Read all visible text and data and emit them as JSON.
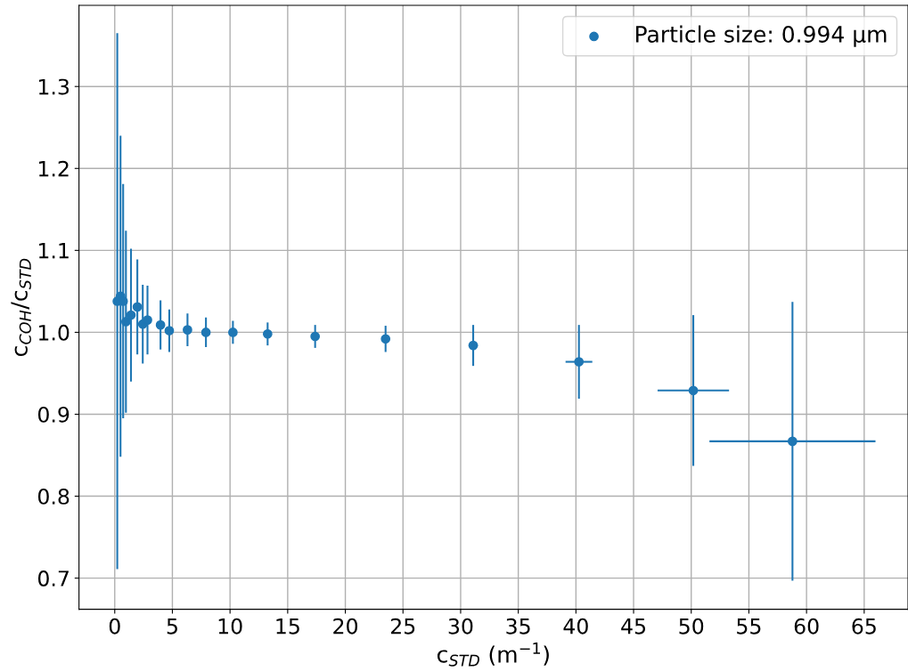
{
  "chart_data": {
    "type": "scatter",
    "xlabel": "c$_{STD}$ (m$^{−1}$)",
    "ylabel": "c$_{COH}$/c$_{STD}$",
    "series": [
      {
        "name": "Particle size: 0.994 μm",
        "color": "#1f77b4",
        "x": [
          0.22,
          0.5,
          0.73,
          0.97,
          1.41,
          1.96,
          2.43,
          2.84,
          3.97,
          4.73,
          6.31,
          7.91,
          10.25,
          13.26,
          17.38,
          23.49,
          31.09,
          40.26,
          50.18,
          58.78
        ],
        "values": [
          1.038,
          1.044,
          1.038,
          1.013,
          1.021,
          1.031,
          1.01,
          1.015,
          1.009,
          1.002,
          1.003,
          1.0,
          1.0,
          0.998,
          0.995,
          0.992,
          0.984,
          0.964,
          0.929,
          0.867
        ],
        "errors": [
          0.327,
          0.196,
          0.143,
          0.111,
          0.081,
          0.058,
          0.048,
          0.042,
          0.03,
          0.026,
          0.02,
          0.018,
          0.014,
          0.014,
          0.014,
          0.016,
          0.025,
          0.045,
          0.092,
          0.17
        ],
        "xerrors": [
          null,
          null,
          null,
          null,
          null,
          null,
          null,
          null,
          null,
          null,
          null,
          null,
          null,
          null,
          null,
          null,
          0.4,
          1.16,
          3.1,
          7.2
        ]
      }
    ],
    "xlim": [
      -3.1,
      68.8
    ],
    "xticks": [
      0,
      5,
      10,
      15,
      20,
      25,
      30,
      35,
      40,
      45,
      50,
      55,
      60,
      65
    ],
    "ylim": [
      0.662,
      1.399
    ],
    "yticks": [
      0.7,
      0.8,
      0.9,
      {
        "value": 1,
        "label": "1.0"
      },
      1.1,
      1.2,
      1.3
    ],
    "grid": true,
    "legend": "top right",
    "marker": "circle"
  }
}
